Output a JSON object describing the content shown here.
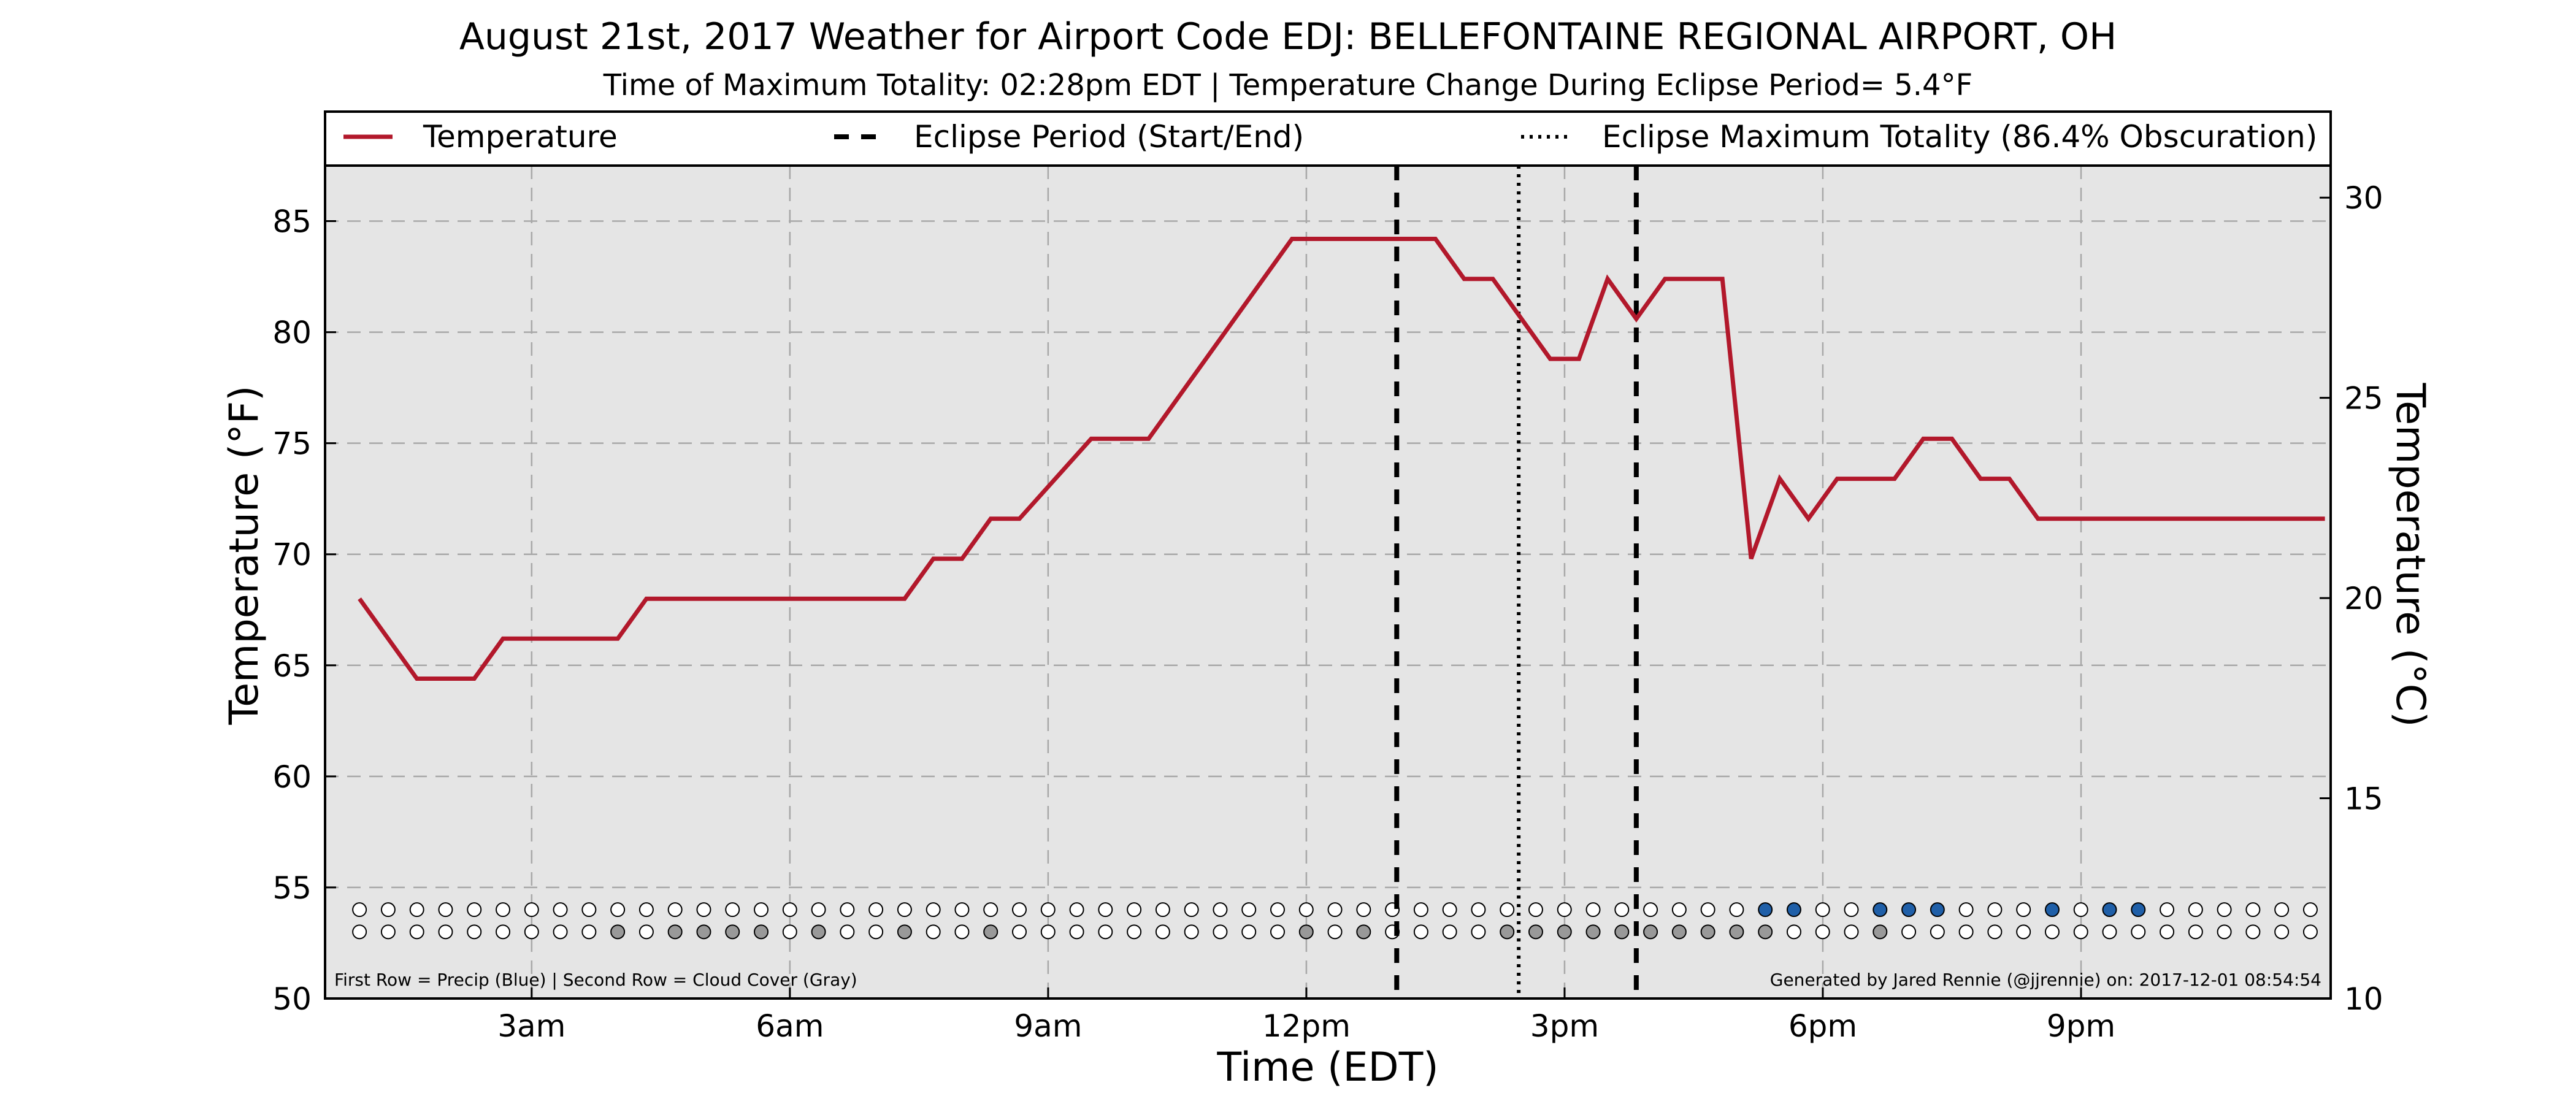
{
  "chart_data": {
    "type": "line",
    "title": "August 21st, 2017 Weather for Airport Code EDJ: BELLEFONTAINE REGIONAL AIRPORT, OH",
    "subtitle": "Time of Maximum Totality: 02:28pm EDT | Temperature Change During Eclipse Period= 5.4°F",
    "xlabel": "Time (EDT)",
    "ylabel": "Temperature (°F)",
    "ylabel_right": "Temperature (°C)",
    "xlim": [
      0.6,
      23.9
    ],
    "ylim": [
      50,
      87.5
    ],
    "ylim_right": [
      10,
      30.8
    ],
    "x_ticks": [
      {
        "x": 3,
        "label": "3am"
      },
      {
        "x": 6,
        "label": "6am"
      },
      {
        "x": 9,
        "label": "9am"
      },
      {
        "x": 12,
        "label": "12pm"
      },
      {
        "x": 15,
        "label": "3pm"
      },
      {
        "x": 18,
        "label": "6pm"
      },
      {
        "x": 21,
        "label": "9pm"
      }
    ],
    "y_ticks": [
      50,
      55,
      60,
      65,
      70,
      75,
      80,
      85
    ],
    "y_ticks_right": [
      10,
      15,
      20,
      25,
      30
    ],
    "grid": true,
    "legend_position": "top",
    "series": [
      {
        "name": "Temperature",
        "color": "#b2182b",
        "x": [
          1.0,
          1.667,
          2.333,
          2.667,
          4.0,
          4.333,
          7.333,
          7.667,
          8.0,
          8.333,
          8.667,
          9.5,
          10.167,
          11.833,
          13.5,
          13.833,
          14.167,
          14.833,
          15.167,
          15.5,
          15.833,
          16.167,
          16.833,
          17.167,
          17.5,
          17.833,
          18.167,
          18.833,
          19.167,
          19.5,
          19.833,
          20.167,
          20.5,
          23.833
        ],
        "y": [
          68.0,
          64.4,
          64.4,
          66.2,
          66.2,
          68.0,
          68.0,
          69.8,
          69.8,
          71.6,
          71.6,
          75.2,
          75.2,
          84.2,
          84.2,
          82.4,
          82.4,
          78.8,
          78.8,
          82.4,
          80.6,
          82.4,
          82.4,
          69.8,
          73.4,
          71.6,
          73.4,
          73.4,
          75.2,
          75.2,
          73.4,
          73.4,
          71.6,
          71.6
        ]
      }
    ],
    "vlines": [
      {
        "name": "Eclipse Period (Start/End)",
        "style": "dashed",
        "x": [
          13.05,
          15.833
        ]
      },
      {
        "name": "Eclipse Maximum Totality (86.4% Obscuration)",
        "style": "dotted",
        "x": [
          14.467
        ]
      }
    ],
    "markers": {
      "x_start": 1.0,
      "x_step": 0.3333,
      "count": 69,
      "precip_row_y": 54.0,
      "cloud_row_y": 53.0,
      "precip_color": "#1f5fa8",
      "cloud_color": "#999999",
      "empty_color": "#ffffff",
      "precip_filled": [
        49,
        50,
        53,
        54,
        55,
        59,
        61,
        62
      ],
      "cloud_filled": [
        9,
        11,
        12,
        13,
        14,
        16,
        19,
        22,
        33,
        35,
        40,
        41,
        42,
        43,
        44,
        45,
        46,
        47,
        48,
        49,
        53
      ]
    },
    "footnote_left": "First Row = Precip (Blue) | Second Row = Cloud Cover (Gray)",
    "footnote_right": "Generated by Jared Rennie (@jjrennie) on: 2017-12-01 08:54:54"
  }
}
